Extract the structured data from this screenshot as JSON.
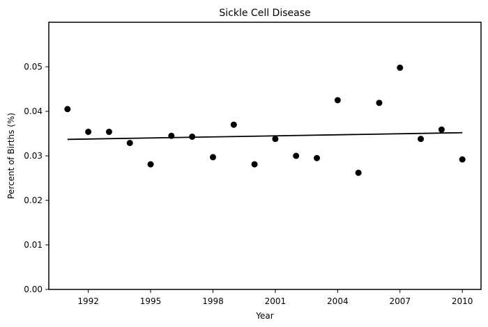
{
  "chart_data": {
    "type": "scatter",
    "title": "Sickle Cell Disease",
    "xlabel": "Year",
    "ylabel": "Percent of Births (%)",
    "xlim": [
      1990.1,
      2010.9
    ],
    "ylim": [
      0.0,
      0.06
    ],
    "xticks": [
      1992,
      1995,
      1998,
      2001,
      2004,
      2007,
      2010
    ],
    "yticks": [
      0.0,
      0.01,
      0.02,
      0.03,
      0.04,
      0.05
    ],
    "ytick_labels": [
      "0.00",
      "0.01",
      "0.02",
      "0.03",
      "0.04",
      "0.05"
    ],
    "grid": false,
    "points": [
      {
        "x": 1991,
        "y": 0.0405
      },
      {
        "x": 1992,
        "y": 0.0354
      },
      {
        "x": 1993,
        "y": 0.0354
      },
      {
        "x": 1994,
        "y": 0.0329
      },
      {
        "x": 1995,
        "y": 0.0281
      },
      {
        "x": 1996,
        "y": 0.0345
      },
      {
        "x": 1997,
        "y": 0.0343
      },
      {
        "x": 1998,
        "y": 0.0297
      },
      {
        "x": 1999,
        "y": 0.037
      },
      {
        "x": 2000,
        "y": 0.0281
      },
      {
        "x": 2001,
        "y": 0.0338
      },
      {
        "x": 2002,
        "y": 0.03
      },
      {
        "x": 2003,
        "y": 0.0295
      },
      {
        "x": 2004,
        "y": 0.0425
      },
      {
        "x": 2005,
        "y": 0.0262
      },
      {
        "x": 2006,
        "y": 0.0419
      },
      {
        "x": 2007,
        "y": 0.0498
      },
      {
        "x": 2008,
        "y": 0.0338
      },
      {
        "x": 2009,
        "y": 0.0359
      },
      {
        "x": 2010,
        "y": 0.0292
      }
    ],
    "trend_line": {
      "x": [
        1991,
        2010
      ],
      "y": [
        0.0337,
        0.0352
      ]
    },
    "colors": {
      "points": "#000000",
      "trend": "#000000"
    }
  }
}
